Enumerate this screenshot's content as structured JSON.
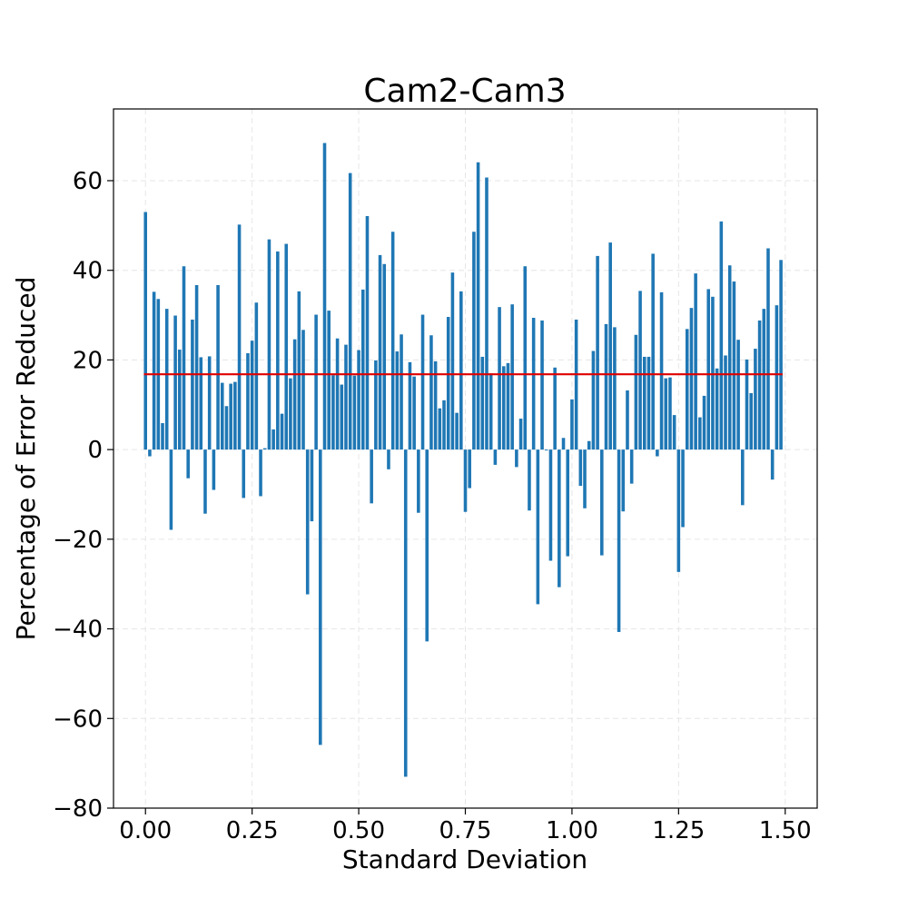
{
  "chart_data": {
    "type": "bar",
    "title": "Cam2-Cam3",
    "xlabel": "Standard Deviation",
    "ylabel": "Percentage of Error Reduced",
    "xlim": [
      -0.075,
      1.575
    ],
    "ylim": [
      -80,
      76
    ],
    "x_ticks": [
      0.0,
      0.25,
      0.5,
      0.75,
      1.0,
      1.25,
      1.5
    ],
    "x_tick_labels": [
      "0.00",
      "0.25",
      "0.50",
      "0.75",
      "1.00",
      "1.25",
      "1.50"
    ],
    "y_ticks": [
      -80,
      -60,
      -40,
      -20,
      0,
      20,
      40,
      60
    ],
    "y_tick_labels": [
      "−80",
      "−60",
      "−40",
      "−20",
      "0",
      "20",
      "40",
      "60"
    ],
    "grid": true,
    "bar_width": 0.008,
    "bar_color": "#1f77b4",
    "mean_line": {
      "value": 16.8,
      "color": "#e00000"
    },
    "x": [
      0.0,
      0.01,
      0.02,
      0.03,
      0.04,
      0.05,
      0.06,
      0.07,
      0.08,
      0.09,
      0.1,
      0.11,
      0.12,
      0.13,
      0.14,
      0.15,
      0.16,
      0.17,
      0.18,
      0.19,
      0.2,
      0.21,
      0.22,
      0.23,
      0.24,
      0.25,
      0.26,
      0.27,
      0.28,
      0.29,
      0.3,
      0.31,
      0.32,
      0.33,
      0.34,
      0.35,
      0.36,
      0.37,
      0.38,
      0.39,
      0.4,
      0.41,
      0.42,
      0.43,
      0.44,
      0.45,
      0.46,
      0.47,
      0.48,
      0.49,
      0.5,
      0.51,
      0.52,
      0.53,
      0.54,
      0.55,
      0.56,
      0.57,
      0.58,
      0.59,
      0.6,
      0.61,
      0.62,
      0.63,
      0.64,
      0.65,
      0.66,
      0.67,
      0.68,
      0.69,
      0.7,
      0.71,
      0.72,
      0.73,
      0.74,
      0.75,
      0.76,
      0.77,
      0.78,
      0.79,
      0.8,
      0.81,
      0.82,
      0.83,
      0.84,
      0.85,
      0.86,
      0.87,
      0.88,
      0.89,
      0.9,
      0.91,
      0.92,
      0.93,
      0.94,
      0.95,
      0.96,
      0.97,
      0.98,
      0.99,
      1.0,
      1.01,
      1.02,
      1.03,
      1.04,
      1.05,
      1.06,
      1.07,
      1.08,
      1.09,
      1.1,
      1.11,
      1.12,
      1.13,
      1.14,
      1.15,
      1.16,
      1.17,
      1.18,
      1.19,
      1.2,
      1.21,
      1.22,
      1.23,
      1.24,
      1.25,
      1.26,
      1.27,
      1.28,
      1.29,
      1.3,
      1.31,
      1.32,
      1.33,
      1.34,
      1.35,
      1.36,
      1.37,
      1.38,
      1.39,
      1.4,
      1.41,
      1.42,
      1.43,
      1.44,
      1.45,
      1.46,
      1.47,
      1.48,
      1.49
    ],
    "values": [
      53.0,
      -1.5,
      35.2,
      33.6,
      5.9,
      31.4,
      -17.9,
      29.9,
      22.3,
      40.9,
      -6.4,
      29.0,
      36.7,
      20.6,
      -14.3,
      20.8,
      -9.0,
      36.7,
      14.9,
      9.7,
      14.7,
      15.1,
      50.2,
      -10.8,
      21.5,
      24.3,
      32.8,
      -10.4,
      0.3,
      46.9,
      4.5,
      44.2,
      8.0,
      45.9,
      15.9,
      24.6,
      35.3,
      26.7,
      -32.3,
      -16.0,
      30.1,
      -65.9,
      68.4,
      31.0,
      16.6,
      24.8,
      14.5,
      23.4,
      61.7,
      16.5,
      22.2,
      35.7,
      52.1,
      -12.0,
      19.9,
      43.4,
      41.4,
      -4.4,
      48.6,
      21.9,
      25.7,
      -73.0,
      19.5,
      16.3,
      -14.1,
      30.1,
      -42.8,
      25.5,
      19.7,
      9.2,
      11.0,
      29.6,
      39.5,
      8.2,
      35.3,
      -13.9,
      -8.6,
      48.6,
      64.1,
      20.7,
      60.7,
      17.0,
      -3.4,
      31.8,
      18.6,
      19.3,
      32.4,
      -3.9,
      6.9,
      40.9,
      -13.6,
      29.4,
      -34.5,
      28.8,
      -0.2,
      -24.8,
      18.3,
      -30.7,
      2.6,
      -23.8,
      11.2,
      29.0,
      -8.1,
      -13.1,
      1.9,
      22.0,
      43.2,
      -23.6,
      28.0,
      46.2,
      27.3,
      -40.7,
      -13.8,
      13.2,
      -7.6,
      25.6,
      35.4,
      20.7,
      20.7,
      43.7,
      -1.5,
      35.1,
      15.9,
      16.1,
      7.7,
      -27.3,
      -17.3,
      26.9,
      31.6,
      39.3,
      7.2,
      12.0,
      35.8,
      34.1,
      18.1,
      50.9,
      21.0,
      41.1,
      37.5,
      24.5,
      -12.4,
      20.1,
      12.6,
      22.5,
      28.8,
      31.4,
      44.9,
      -6.7,
      32.2,
      42.3
    ]
  }
}
